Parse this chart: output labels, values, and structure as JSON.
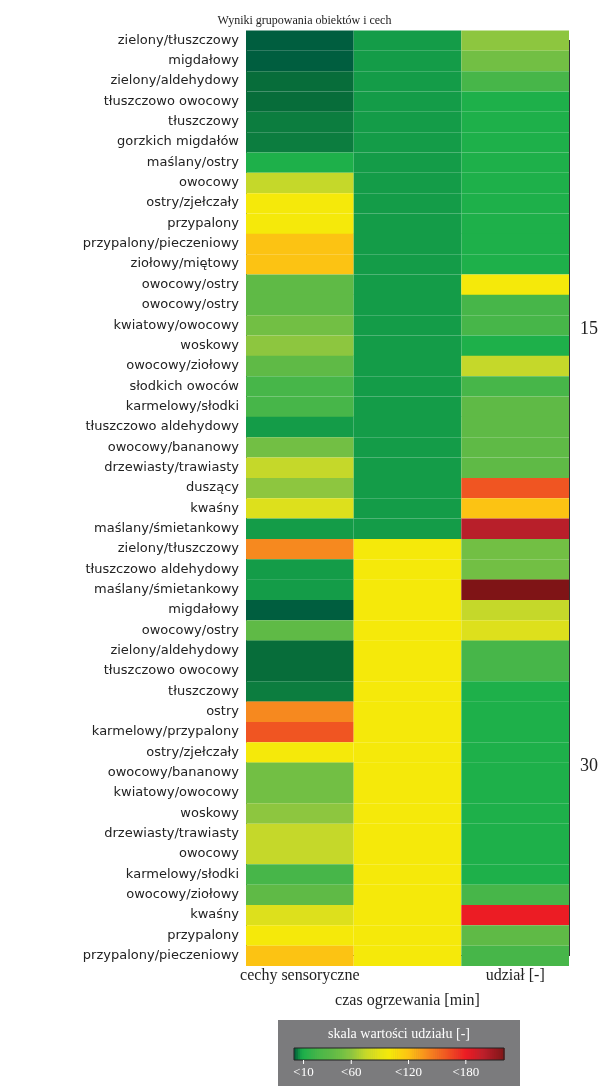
{
  "chart_data": {
    "type": "heatmap",
    "title": "Wyniki grupowania obiektów i cech",
    "xlabel": "czas ogrzewania [min]",
    "categories": [
      "cechy sensoryczne",
      null,
      "udział [-]"
    ],
    "y_categories": [
      "zielony/tłuszczowy",
      "migdałowy",
      "zielony/aldehydowy",
      "tłuszczowo owocowy",
      "tłuszczowy",
      "gorzkich migdałów",
      "maślany/ostry",
      "owocowy",
      "ostry/zjełczały",
      "przypalony",
      "przypalony/pieczeniowy",
      "ziołowy/miętowy",
      "owocowy/ostry",
      "owocowy/ostry",
      "kwiatowy/owocowy",
      "woskowy",
      "owocowy/ziołowy",
      "słodkich owoców",
      "karmelowy/słodki",
      "tłuszczowo aldehydowy",
      "owocowy/bananowy",
      "drzewiasty/trawiasty",
      "duszący",
      "kwaśny",
      "maślany/śmietankowy",
      "zielony/tłuszczowy",
      "tłuszczowo aldehydowy",
      "maślany/śmietankowy",
      "migdałowy",
      "owocowy/ostry",
      "zielony/aldehydowy",
      "tłuszczowo owocowy",
      "tłuszczowy",
      "ostry",
      "karmelowy/przypalony",
      "ostry/zjełczały",
      "owocowy/bananowy",
      "kwiatowy/owocowy",
      "woskowy",
      "drzewiasty/trawiasty",
      "owocowy",
      "karmelowy/słodki",
      "owocowy/ziołowy",
      "kwaśny",
      "przypalony",
      "przypalony/pieczeniowy"
    ],
    "cells": [
      [
        0,
        6,
        60
      ],
      [
        0,
        6,
        50
      ],
      [
        2,
        6,
        25
      ],
      [
        2,
        6,
        10
      ],
      [
        4,
        6,
        10
      ],
      [
        4,
        6,
        10
      ],
      [
        10,
        6,
        10
      ],
      [
        75,
        6,
        10
      ],
      [
        100,
        6,
        10
      ],
      [
        100,
        6,
        10
      ],
      [
        120,
        6,
        10
      ],
      [
        120,
        6,
        10
      ],
      [
        40,
        6,
        100
      ],
      [
        40,
        6,
        25
      ],
      [
        50,
        6,
        25
      ],
      [
        60,
        6,
        10
      ],
      [
        40,
        6,
        75
      ],
      [
        25,
        6,
        25
      ],
      [
        25,
        6,
        40
      ],
      [
        6,
        6,
        40
      ],
      [
        50,
        6,
        40
      ],
      [
        75,
        6,
        40
      ],
      [
        60,
        6,
        160
      ],
      [
        85,
        6,
        120
      ],
      [
        6,
        6,
        200
      ],
      [
        140,
        100,
        50
      ],
      [
        6,
        100,
        50
      ],
      [
        6,
        100,
        220
      ],
      [
        0,
        100,
        75
      ],
      [
        40,
        100,
        85
      ],
      [
        2,
        100,
        25
      ],
      [
        2,
        100,
        25
      ],
      [
        4,
        100,
        10
      ],
      [
        140,
        100,
        10
      ],
      [
        160,
        100,
        10
      ],
      [
        100,
        100,
        10
      ],
      [
        50,
        100,
        10
      ],
      [
        50,
        100,
        10
      ],
      [
        60,
        100,
        10
      ],
      [
        75,
        100,
        10
      ],
      [
        75,
        100,
        10
      ],
      [
        25,
        100,
        10
      ],
      [
        40,
        100,
        25
      ],
      [
        85,
        100,
        180
      ],
      [
        100,
        100,
        40
      ],
      [
        120,
        100,
        25
      ]
    ],
    "clim": [
      0,
      220
    ],
    "cticks": [
      {
        "value": 180,
        "label": "<180"
      },
      {
        "value": 120,
        "label": "<120"
      },
      {
        "value": 60,
        "label": "<60"
      },
      {
        "value": 10,
        "label": "<10"
      }
    ],
    "clabel": "skala wartości udziału [-]",
    "y2lim": [
      36.5,
      5.1
    ],
    "y2ticks": [
      15,
      30
    ],
    "grid": false
  }
}
